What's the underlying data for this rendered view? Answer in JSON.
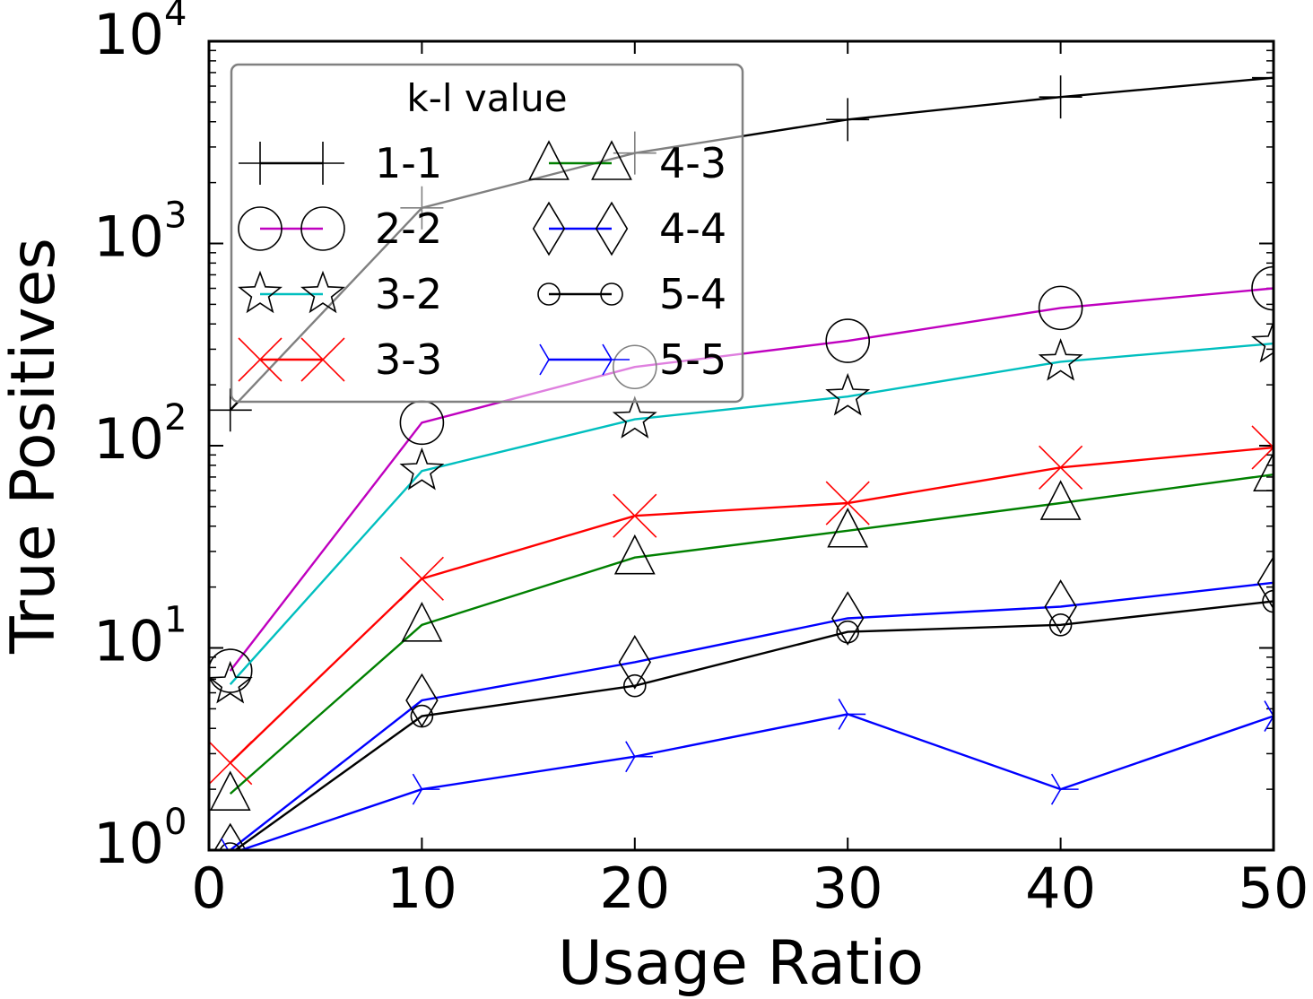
{
  "chart_data": {
    "type": "line",
    "xlabel": "Usage Ratio",
    "ylabel": "True Positives",
    "y_scale": "log",
    "xlim": [
      0,
      50
    ],
    "ylim": [
      1,
      10000
    ],
    "x_ticks": [
      0,
      10,
      20,
      30,
      40,
      50
    ],
    "x_tick_labels": [
      "0",
      "10",
      "20",
      "30",
      "40",
      "50"
    ],
    "y_ticks": [
      1,
      10,
      100,
      1000,
      10000
    ],
    "y_tick_labels": [
      {
        "base": "10",
        "exp": "0"
      },
      {
        "base": "10",
        "exp": "1"
      },
      {
        "base": "10",
        "exp": "2"
      },
      {
        "base": "10",
        "exp": "3"
      },
      {
        "base": "10",
        "exp": "4"
      }
    ],
    "legend": {
      "title": "k-l value",
      "placement": "upper-left",
      "columns": 2
    },
    "x": [
      1,
      10,
      20,
      30,
      40,
      50
    ],
    "series": [
      {
        "name": "1-1",
        "color": "#000000",
        "marker": "plus",
        "values": [
          150,
          1500,
          2800,
          4100,
          5300,
          6600
        ]
      },
      {
        "name": "2-2",
        "color": "#bf00bf",
        "marker": "circle",
        "values": [
          7.7,
          130,
          245,
          330,
          480,
          600
        ]
      },
      {
        "name": "3-2",
        "color": "#00bfbf",
        "marker": "star",
        "values": [
          6.6,
          75,
          135,
          175,
          260,
          320
        ]
      },
      {
        "name": "3-3",
        "color": "#ff0000",
        "marker": "x",
        "values": [
          2.7,
          22,
          45,
          52,
          78,
          98
        ]
      },
      {
        "name": "4-3",
        "color": "#008000",
        "marker": "triangle",
        "values": [
          1.9,
          13,
          28,
          38,
          52,
          72
        ]
      },
      {
        "name": "4-4",
        "color": "#0000ff",
        "marker": "diamond",
        "values": [
          1.0,
          5.5,
          8.5,
          14,
          16,
          21
        ]
      },
      {
        "name": "5-4",
        "color": "#000000",
        "marker": "small-circle",
        "values": [
          0.96,
          4.6,
          6.5,
          12,
          13,
          17
        ]
      },
      {
        "name": "5-5",
        "color": "#0000ff",
        "marker": "tri-right",
        "values": [
          0.96,
          2.0,
          2.9,
          4.7,
          2.0,
          4.6
        ]
      }
    ]
  }
}
